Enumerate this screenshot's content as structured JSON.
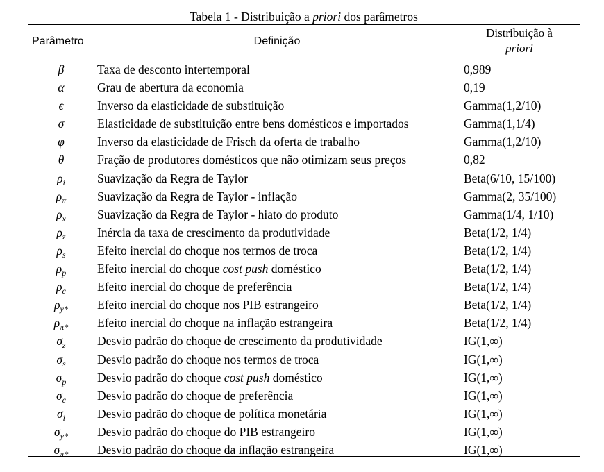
{
  "title": "Tabela 1 - Distribuição a priori dos parâmetros",
  "title_parts": {
    "prefix": "Tabela 1 - Distribuição a ",
    "italic": "priori",
    "suffix": " dos parâmetros"
  },
  "headers": {
    "param": "Parâmetro",
    "definition": "Definição",
    "distribution_line1": "Distribuição à",
    "distribution_line2": "priori"
  },
  "rows": [
    {
      "sym": "β",
      "sub": "",
      "def": "Taxa de desconto intertemporal",
      "dist": "0,989"
    },
    {
      "sym": "α",
      "sub": "",
      "def": "Grau de abertura da economia",
      "dist": "0,19"
    },
    {
      "sym": "ϵ",
      "sub": "",
      "def": "Inverso da elasticidade de substituição",
      "dist": "Gamma(1,2/10)"
    },
    {
      "sym": "σ",
      "sub": "",
      "def": "Elasticidade de substituição entre bens domésticos e importados",
      "dist": "Gamma(1,1/4)"
    },
    {
      "sym": "φ",
      "sub": "",
      "def": "Inverso da elasticidade de Frisch da oferta de trabalho",
      "dist": "Gamma(1,2/10)"
    },
    {
      "sym": "θ",
      "sub": "",
      "def": "Fração de produtores domésticos que não otimizam seus preços",
      "dist": "0,82"
    },
    {
      "sym": "ρ",
      "sub": "i",
      "def": "Suavização da Regra de Taylor",
      "dist": "Beta(6/10, 15/100)"
    },
    {
      "sym": "ρ",
      "sub": "π",
      "def": "Suavização da Regra de Taylor - inflação",
      "dist": "Gamma(2, 35/100)"
    },
    {
      "sym": "ρ",
      "sub": "x",
      "def": "Suavização da Regra de Taylor - hiato do produto",
      "dist": "Gamma(1/4, 1/10)"
    },
    {
      "sym": "ρ",
      "sub": "z",
      "def": "Inércia da taxa de crescimento da produtividade",
      "dist": "Beta(1/2, 1/4)"
    },
    {
      "sym": "ρ",
      "sub": "s",
      "def": "Efeito inercial do choque nos termos de troca",
      "dist": "Beta(1/2, 1/4)"
    },
    {
      "sym": "ρ",
      "sub": "p",
      "def": "Efeito inercial do choque cost push doméstico",
      "dist": "Beta(1/2, 1/4)",
      "def_parts": [
        "Efeito inercial do choque ",
        "cost push",
        " doméstico"
      ]
    },
    {
      "sym": "ρ",
      "sub": "c",
      "def": "Efeito inercial do choque de preferência",
      "dist": "Beta(1/2, 1/4)"
    },
    {
      "sym": "ρ",
      "sub": "y*",
      "def": "Efeito inercial do choque nos PIB estrangeiro",
      "dist": "Beta(1/2, 1/4)"
    },
    {
      "sym": "ρ",
      "sub": "π*",
      "def": "Efeito inercial do choque na inflação estrangeira",
      "dist": "Beta(1/2, 1/4)"
    },
    {
      "sym": "σ",
      "sub": "z",
      "def": "Desvio padrão do choque de crescimento da produtividade",
      "dist": "IG(1,∞)"
    },
    {
      "sym": "σ",
      "sub": "s",
      "def": "Desvio padrão do choque nos termos de troca",
      "dist": "IG(1,∞)"
    },
    {
      "sym": "σ",
      "sub": "p",
      "def": "Desvio padrão do choque cost push doméstico",
      "dist": "IG(1,∞)",
      "def_parts": [
        "Desvio padrão do choque ",
        "cost push",
        " doméstico"
      ]
    },
    {
      "sym": "σ",
      "sub": "c",
      "def": "Desvio padrão do choque de preferência",
      "dist": "IG(1,∞)"
    },
    {
      "sym": "σ",
      "sub": "i",
      "def": "Desvio padrão do choque de política monetária",
      "dist": "IG(1,∞)"
    },
    {
      "sym": "σ",
      "sub": "y*",
      "def": "Desvio padrão do choque do PIB estrangeiro",
      "dist": "IG(1,∞)"
    },
    {
      "sym": "σ",
      "sub": "π*",
      "def": "Desvio padrão do choque da inflação estrangeira",
      "dist": "IG(1,∞)"
    }
  ]
}
